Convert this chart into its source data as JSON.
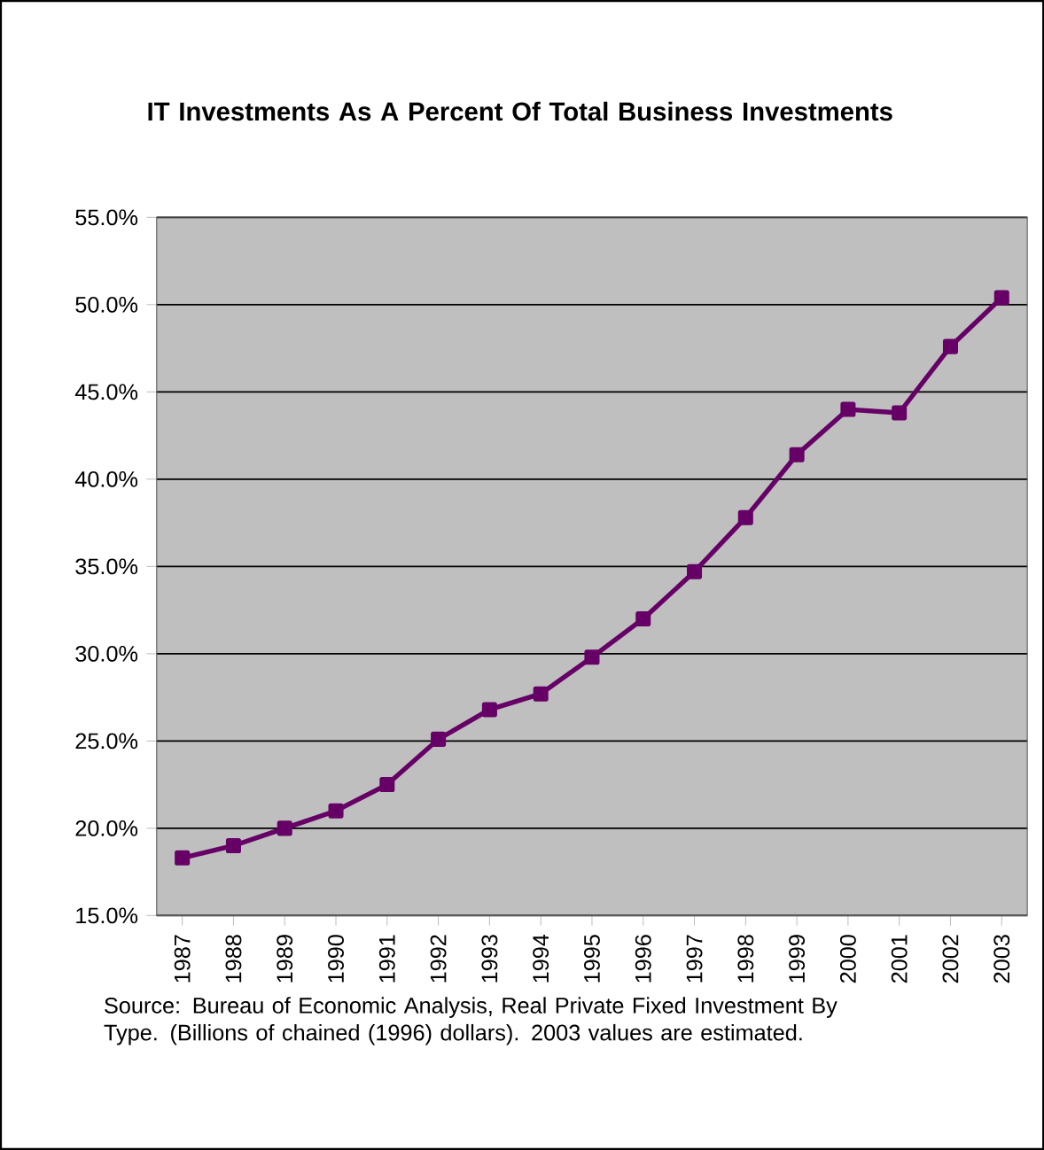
{
  "chart_data": {
    "type": "line",
    "title": "IT Investments As A Percent Of Total Business Investments",
    "categories": [
      "1987",
      "1988",
      "1989",
      "1990",
      "1991",
      "1992",
      "1993",
      "1994",
      "1995",
      "1996",
      "1997",
      "1998",
      "1999",
      "2000",
      "2001",
      "2002",
      "2003"
    ],
    "series": [
      {
        "color": "#660066",
        "values": [
          18.3,
          19.0,
          20.0,
          21.0,
          22.5,
          25.1,
          26.8,
          27.7,
          29.8,
          32.0,
          34.7,
          37.8,
          41.4,
          44.0,
          43.8,
          47.6,
          50.4
        ]
      }
    ],
    "ylim": [
      15,
      55
    ],
    "yticks": [
      {
        "value": 15,
        "label": "15.0%"
      },
      {
        "value": 20,
        "label": "20.0%"
      },
      {
        "value": 25,
        "label": "25.0%"
      },
      {
        "value": 30,
        "label": "30.0%"
      },
      {
        "value": 35,
        "label": "35.0%"
      },
      {
        "value": 40,
        "label": "40.0%"
      },
      {
        "value": 45,
        "label": "45.0%"
      },
      {
        "value": 50,
        "label": "50.0%"
      },
      {
        "value": 55,
        "label": "55.0%"
      }
    ],
    "grid": "y",
    "marker": "square",
    "line_style": "solid",
    "annotations": [
      "Source:  Bureau of Economic Analysis, Real Private Fixed Investment By Type. (Billions of chained (1996) dollars).  2003 values are estimated."
    ]
  }
}
